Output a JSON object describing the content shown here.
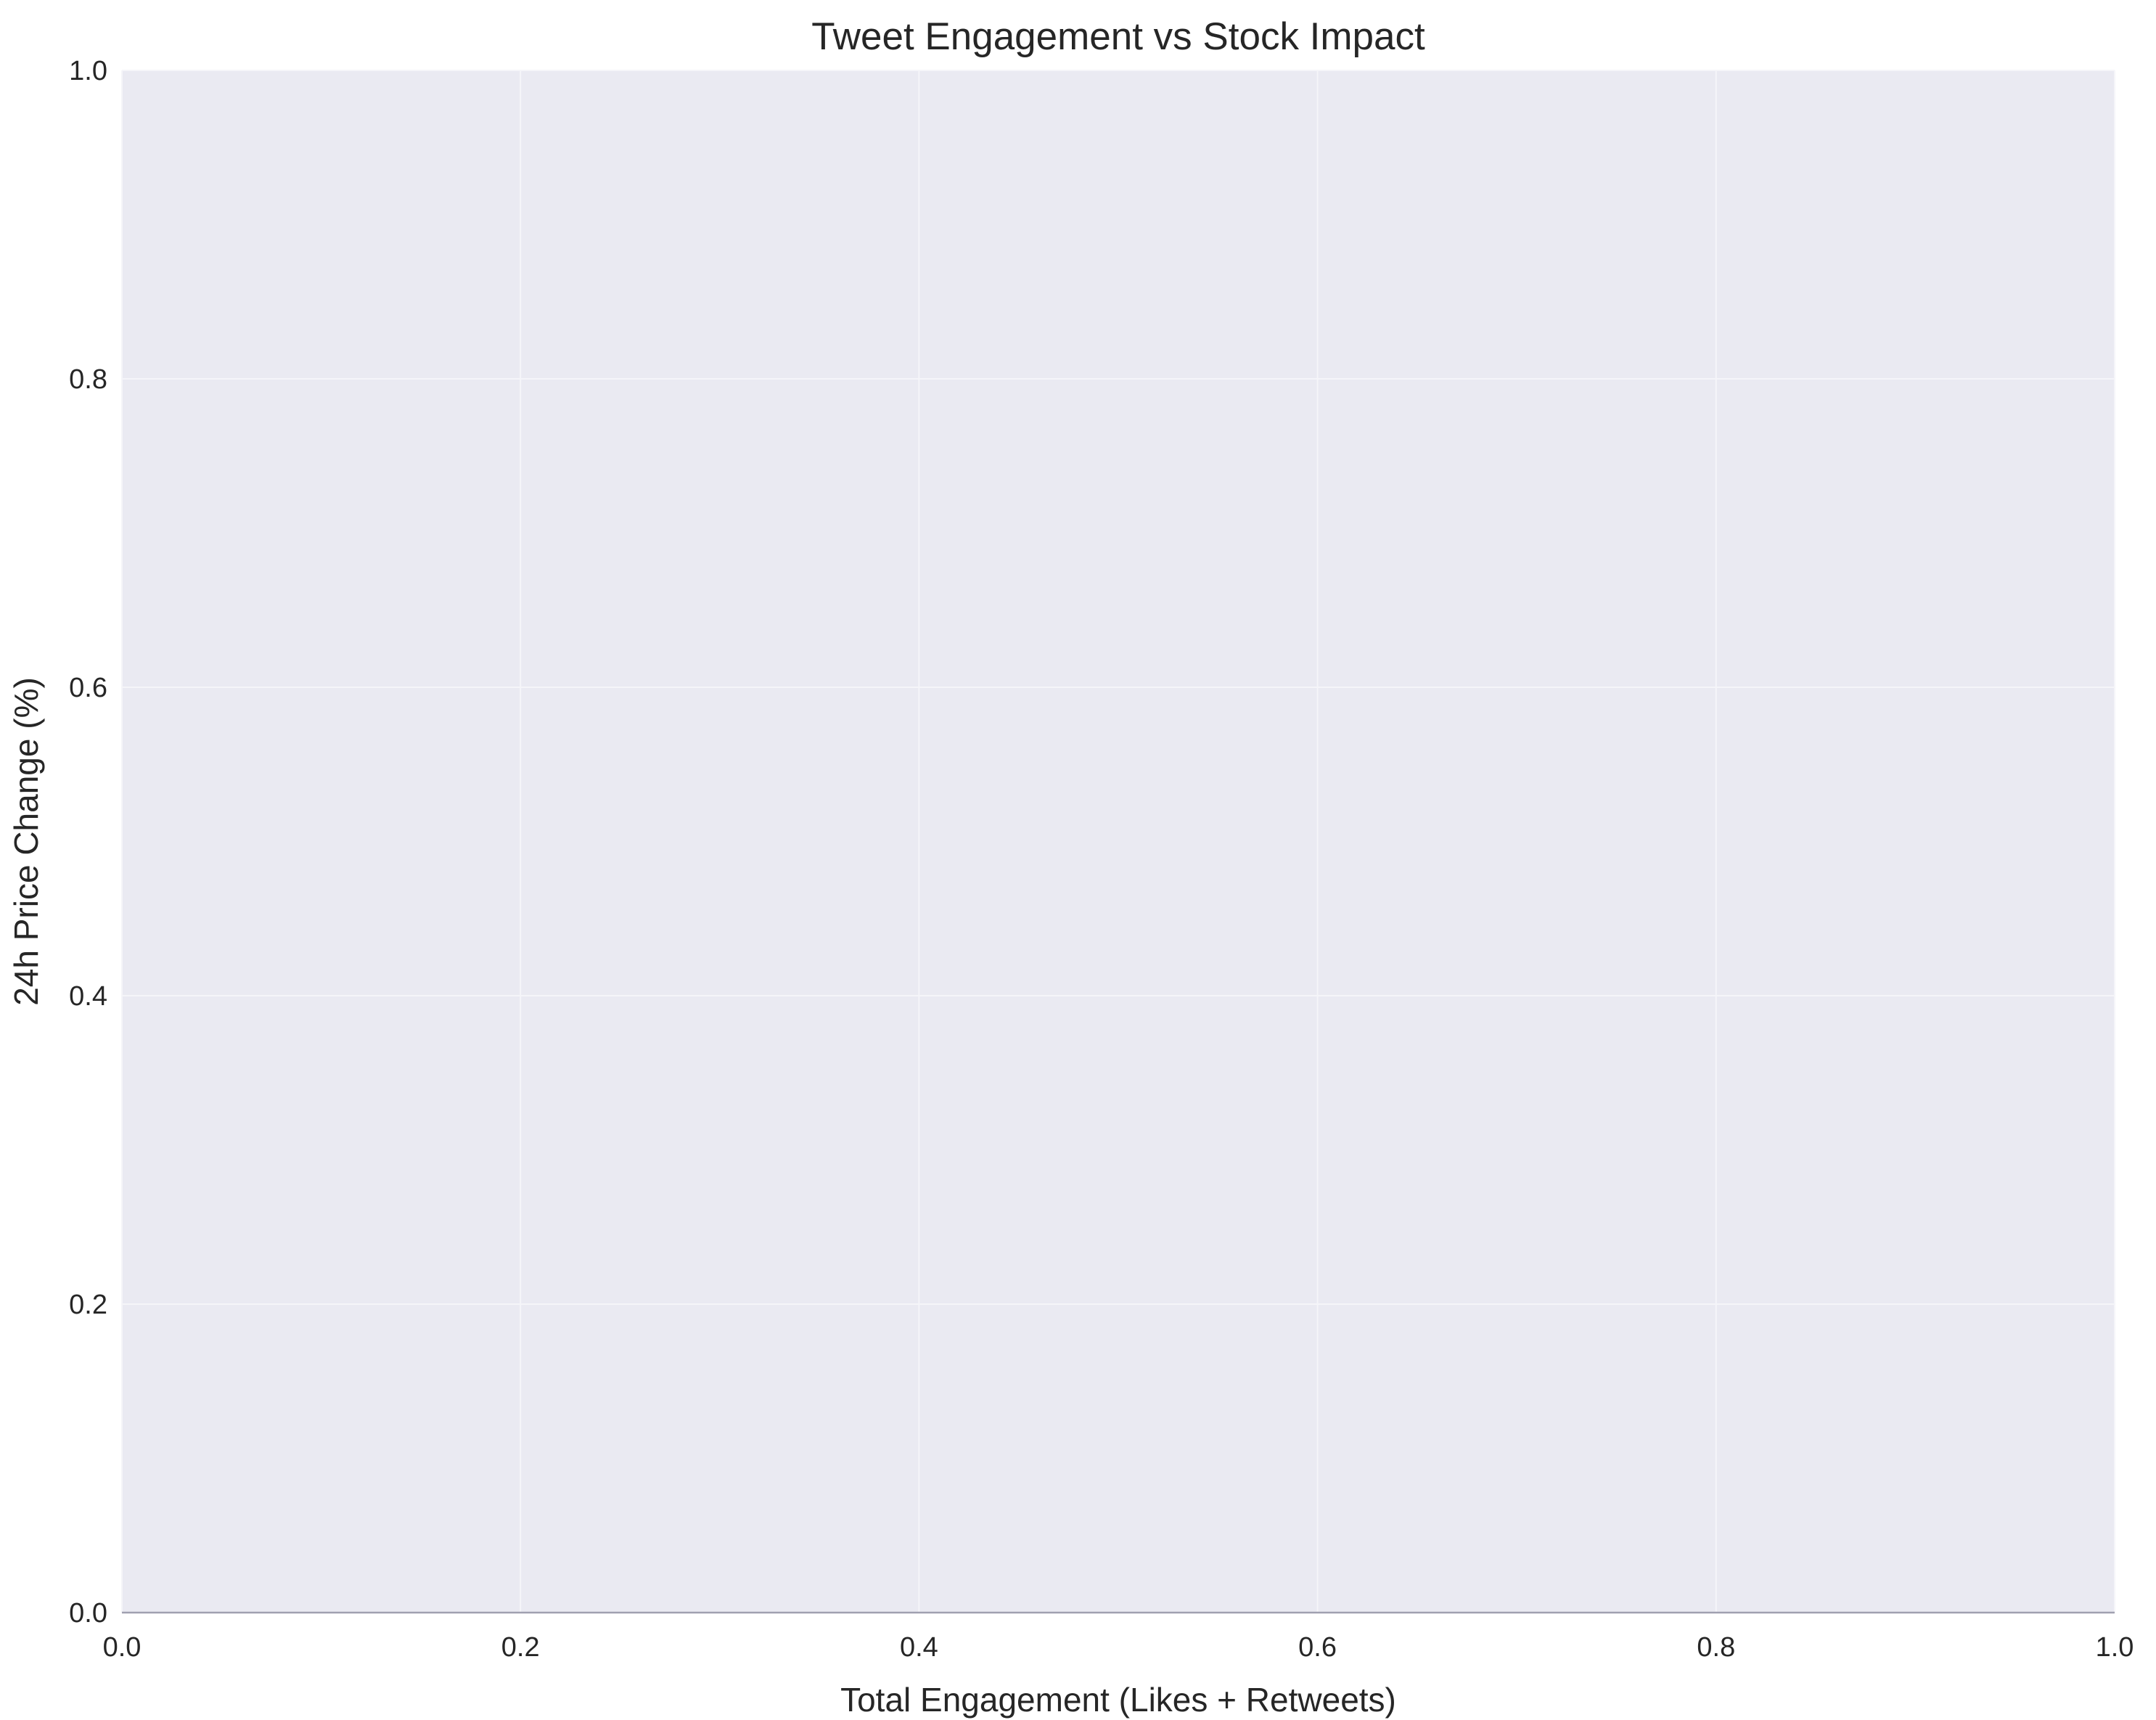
{
  "chart_data": {
    "type": "scatter",
    "title": "Tweet Engagement vs Stock Impact",
    "xlabel": "Total Engagement (Likes + Retweets)",
    "ylabel": "24h Price Change (%)",
    "xlim": [
      0.0,
      1.0
    ],
    "ylim": [
      0.0,
      1.0
    ],
    "x_ticks": [
      "0.0",
      "0.2",
      "0.4",
      "0.6",
      "0.8",
      "1.0"
    ],
    "y_ticks": [
      "0.0",
      "0.2",
      "0.4",
      "0.6",
      "0.8",
      "1.0"
    ],
    "grid": true,
    "legend": "none",
    "series": [
      {
        "x": [],
        "y": []
      }
    ],
    "colors": {
      "plot_background": "#eaeaf2",
      "grid": "#f5f5f9",
      "baseline": "#a0a0b0",
      "text": "#262626"
    }
  }
}
